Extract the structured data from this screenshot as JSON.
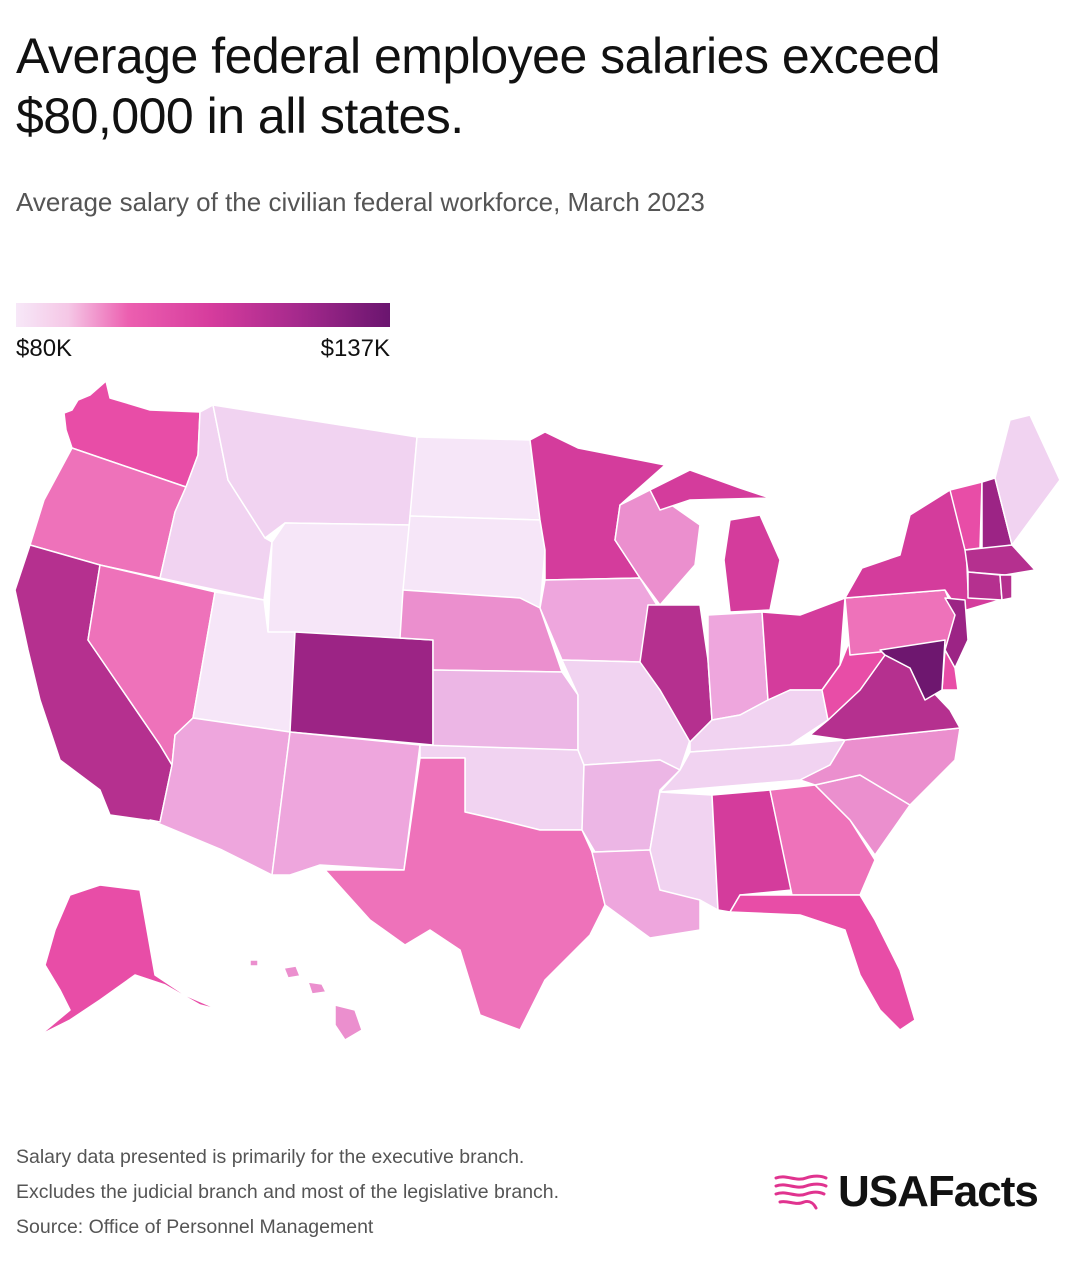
{
  "header": {
    "title": "Average federal employee salaries exceed $80,000 in all states.",
    "subtitle": "Average salary of the civilian federal workforce, March 2023"
  },
  "legend": {
    "min_label": "$80K",
    "max_label": "$137K",
    "min_value": 80,
    "max_value": 137,
    "color_low": "#f7e8f8",
    "color_high": "#6a156f"
  },
  "colors": {
    "c1": "#f6e6f8",
    "c2": "#f1d3f1",
    "c3": "#ecb6e5",
    "c4": "#eea6dd",
    "c5": "#eb8fce",
    "c6": "#ee72ba",
    "c7": "#e84da7",
    "c8": "#d43c9c",
    "c9": "#b5308f",
    "c10": "#9c2485",
    "c11": "#6e176f",
    "accent": "#e0338f"
  },
  "map": {
    "states": [
      {
        "id": "WA",
        "color_class": "c7"
      },
      {
        "id": "OR",
        "color_class": "c6"
      },
      {
        "id": "CA",
        "color_class": "c9"
      },
      {
        "id": "NV",
        "color_class": "c6"
      },
      {
        "id": "ID",
        "color_class": "c2"
      },
      {
        "id": "MT",
        "color_class": "c2"
      },
      {
        "id": "WY",
        "color_class": "c1"
      },
      {
        "id": "UT",
        "color_class": "c1"
      },
      {
        "id": "AZ",
        "color_class": "c4"
      },
      {
        "id": "CO",
        "color_class": "c10"
      },
      {
        "id": "NM",
        "color_class": "c4"
      },
      {
        "id": "ND",
        "color_class": "c1"
      },
      {
        "id": "SD",
        "color_class": "c1"
      },
      {
        "id": "NE",
        "color_class": "c5"
      },
      {
        "id": "KS",
        "color_class": "c3"
      },
      {
        "id": "OK",
        "color_class": "c2"
      },
      {
        "id": "TX",
        "color_class": "c6"
      },
      {
        "id": "MN",
        "color_class": "c8"
      },
      {
        "id": "IA",
        "color_class": "c4"
      },
      {
        "id": "MO",
        "color_class": "c2"
      },
      {
        "id": "AR",
        "color_class": "c3"
      },
      {
        "id": "LA",
        "color_class": "c4"
      },
      {
        "id": "WI",
        "color_class": "c5"
      },
      {
        "id": "IL",
        "color_class": "c9"
      },
      {
        "id": "MI",
        "color_class": "c8"
      },
      {
        "id": "IN",
        "color_class": "c4"
      },
      {
        "id": "OH",
        "color_class": "c8"
      },
      {
        "id": "KY",
        "color_class": "c2"
      },
      {
        "id": "TN",
        "color_class": "c2"
      },
      {
        "id": "MS",
        "color_class": "c2"
      },
      {
        "id": "AL",
        "color_class": "c8"
      },
      {
        "id": "GA",
        "color_class": "c6"
      },
      {
        "id": "FL",
        "color_class": "c7"
      },
      {
        "id": "SC",
        "color_class": "c5"
      },
      {
        "id": "NC",
        "color_class": "c5"
      },
      {
        "id": "VA",
        "color_class": "c9"
      },
      {
        "id": "WV",
        "color_class": "c7"
      },
      {
        "id": "PA",
        "color_class": "c6"
      },
      {
        "id": "NY",
        "color_class": "c8"
      },
      {
        "id": "VT",
        "color_class": "c7"
      },
      {
        "id": "NH",
        "color_class": "c10"
      },
      {
        "id": "ME",
        "color_class": "c2"
      },
      {
        "id": "MA",
        "color_class": "c9"
      },
      {
        "id": "RI",
        "color_class": "c9"
      },
      {
        "id": "CT",
        "color_class": "c9"
      },
      {
        "id": "NJ",
        "color_class": "c10"
      },
      {
        "id": "DE",
        "color_class": "c7"
      },
      {
        "id": "MD",
        "color_class": "c11"
      },
      {
        "id": "AK",
        "color_class": "c7"
      },
      {
        "id": "HI",
        "color_class": "c5"
      }
    ]
  },
  "footer": {
    "note_1": "Salary data presented is primarily for the executive branch.",
    "note_2": "Excludes the judicial branch and most of the legislative branch.",
    "source": "Source: Office of Personnel Management",
    "brand": "USAFacts",
    "brand_icon": "usafacts-flag-icon"
  }
}
